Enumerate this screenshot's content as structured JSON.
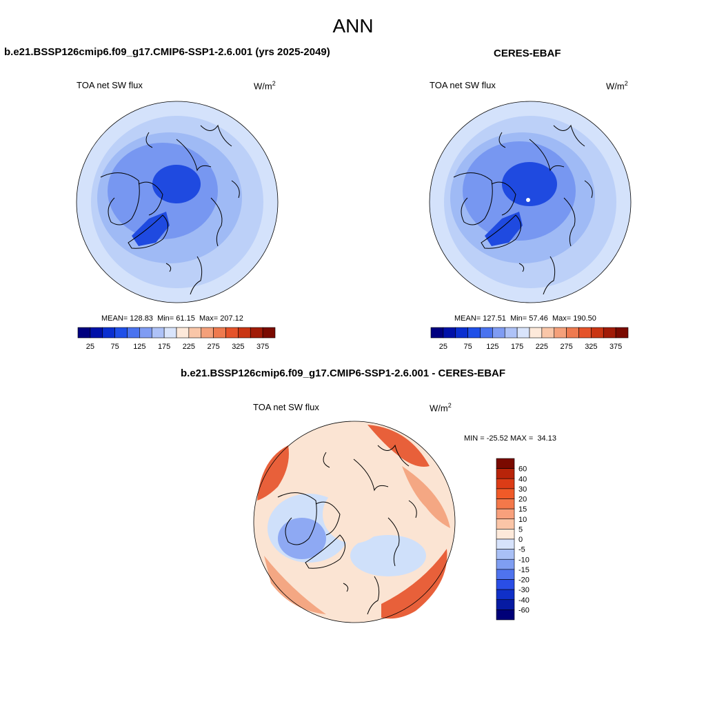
{
  "page": {
    "title": "ANN"
  },
  "panels": [
    {
      "title": "b.e21.BSSP126cmip6.f09_g17.CMIP6-SSP1-2.6.001 (yrs 2025-2049)",
      "variable": "TOA net SW flux",
      "units": "W/m",
      "units_sup": "2",
      "stats": {
        "mean_label": "MEAN=",
        "mean": "128.83",
        "min_label": "Min=",
        "min": "61.15",
        "max_label": "Max=",
        "max": "207.12"
      }
    },
    {
      "title": "CERES-EBAF",
      "variable": "TOA net SW flux",
      "units": "W/m",
      "units_sup": "2",
      "stats": {
        "mean_label": "MEAN=",
        "mean": "127.51",
        "min_label": "Min=",
        "min": "57.46",
        "max_label": "Max=",
        "max": "190.50"
      }
    },
    {
      "title": "b.e21.BSSP126cmip6.f09_g17.CMIP6-SSP1-2.6.001 - CERES-EBAF",
      "variable": "TOA net SW flux",
      "units": "W/m",
      "units_sup": "2",
      "stats": {
        "min_label": "MIN =",
        "min": "-25.52",
        "max_label": "MAX =",
        "max": "34.13"
      }
    }
  ],
  "colorbar_abs": {
    "labels": [
      "25",
      "75",
      "125",
      "175",
      "225",
      "275",
      "325",
      "375"
    ],
    "colors": [
      "#00007f",
      "#0011a8",
      "#0a2fd0",
      "#1f4fe8",
      "#4a73ef",
      "#7f9cf3",
      "#aec2f7",
      "#d9e4fb",
      "#fde9da",
      "#f9c6a8",
      "#f4a07a",
      "#ee7a4f",
      "#e5532a",
      "#c93512",
      "#a11b07",
      "#7a0a00"
    ]
  },
  "colorbar_diff": {
    "labels": [
      "60",
      "40",
      "30",
      "20",
      "15",
      "10",
      "5",
      "0",
      "-5",
      "-10",
      "-15",
      "-20",
      "-30",
      "-40",
      "-60"
    ],
    "colors": [
      "#7a0a00",
      "#b82409",
      "#dc3c16",
      "#f05a28",
      "#f4784a",
      "#f8a07c",
      "#fbc5a7",
      "#fde9da",
      "#d6e2fb",
      "#a9c0f6",
      "#7f9ef2",
      "#4f73ee",
      "#2a4ee6",
      "#1030c8",
      "#061aa2",
      "#000078"
    ]
  },
  "map_colors": {
    "ocean_mid": "#bcd0f8",
    "ring_outer": "#d4e2fb",
    "ring_mid": "#9fbaf5",
    "ring_inner": "#7797f1",
    "core": "#4a70ec",
    "deep": "#1f4ae0",
    "diff_base": "#fbe4d3",
    "diff_warm": "#f4a783",
    "diff_hot": "#e8603a",
    "diff_cool": "#cfe0fa",
    "diff_cold": "#8ea9f3",
    "coast": "#000000"
  }
}
